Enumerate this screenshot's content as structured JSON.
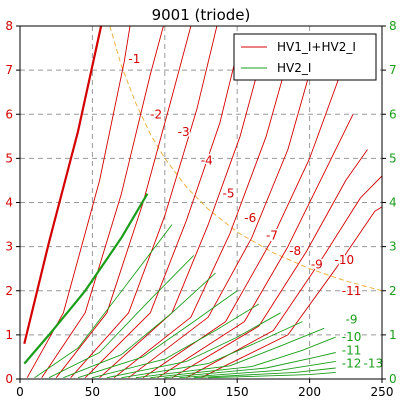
{
  "chart_data": {
    "type": "line",
    "title": "9001 (triode)",
    "xlim": [
      0,
      250
    ],
    "ylim": [
      0,
      8
    ],
    "x_ticks": [
      "0",
      "50",
      "100",
      "150",
      "200",
      "250"
    ],
    "y_ticks": [
      "0",
      "1",
      "2",
      "3",
      "4",
      "5",
      "6",
      "7",
      "8"
    ],
    "grid": true,
    "legend_position": "top-right",
    "colors": {
      "total": "#d40000",
      "hv2": "#1a9e1a",
      "dissipation": "#f0b040",
      "axis_left": "#d40000",
      "axis_right": "#1a9e1a"
    },
    "legend": [
      {
        "label": "HV1_I+HV2_I",
        "color": "#d40000"
      },
      {
        "label": "HV2_I",
        "color": "#1a9e1a"
      }
    ],
    "series": [
      {
        "name": "HV1_I+HV2_I",
        "grid_voltage": "0",
        "x": [
          3,
          20,
          40,
          56
        ],
        "y": [
          0.8,
          3.1,
          5.6,
          8.0
        ]
      },
      {
        "name": "HV1_I+HV2_I",
        "grid_voltage": "-1",
        "x": [
          5,
          30,
          55,
          72,
          76
        ],
        "y": [
          0.03,
          1.5,
          4.5,
          7.2,
          8.0
        ]
      },
      {
        "name": "HV1_I+HV2_I",
        "grid_voltage": "-2",
        "x": [
          15,
          45,
          70,
          90,
          99
        ],
        "y": [
          0.03,
          1.5,
          4.2,
          6.9,
          8.0
        ]
      },
      {
        "name": "HV1_I+HV2_I",
        "grid_voltage": "-3",
        "x": [
          25,
          60,
          85,
          105,
          118
        ],
        "y": [
          0.03,
          1.5,
          4.0,
          6.4,
          8.0
        ]
      },
      {
        "name": "HV1_I+HV2_I",
        "grid_voltage": "-4",
        "x": [
          35,
          75,
          100,
          122,
          136
        ],
        "y": [
          0.03,
          1.5,
          3.7,
          6.1,
          8.0
        ]
      },
      {
        "name": "HV1_I+HV2_I",
        "grid_voltage": "-5",
        "x": [
          45,
          90,
          115,
          138,
          153
        ],
        "y": [
          0.03,
          1.5,
          3.6,
          5.8,
          7.8
        ]
      },
      {
        "name": "HV1_I+HV2_I",
        "grid_voltage": "-6",
        "x": [
          55,
          105,
          130,
          152,
          171
        ],
        "y": [
          0.03,
          1.5,
          3.5,
          5.5,
          7.8
        ]
      },
      {
        "name": "HV1_I+HV2_I",
        "grid_voltage": "-7",
        "x": [
          65,
          118,
          145,
          170,
          188
        ],
        "y": [
          0.03,
          1.4,
          3.3,
          5.5,
          7.6
        ]
      },
      {
        "name": "HV1_I+HV2_I",
        "grid_voltage": "-8",
        "x": [
          75,
          130,
          160,
          185,
          204
        ],
        "y": [
          0.03,
          1.4,
          3.2,
          5.2,
          7.4
        ]
      },
      {
        "name": "HV1_I+HV2_I",
        "grid_voltage": "-9",
        "x": [
          85,
          142,
          173,
          200,
          220
        ],
        "y": [
          0.03,
          1.3,
          3.1,
          5.0,
          6.8
        ]
      },
      {
        "name": "HV1_I+HV2_I",
        "grid_voltage": "-10",
        "x": [
          95,
          155,
          185,
          212,
          230
        ],
        "y": [
          0.03,
          1.3,
          3.0,
          4.8,
          6.0
        ]
      },
      {
        "name": "HV1_I+HV2_I",
        "grid_voltage": "-11",
        "x": [
          105,
          165,
          198,
          225,
          240
        ],
        "y": [
          0.03,
          1.2,
          2.9,
          4.5,
          5.2
        ]
      },
      {
        "name": "HV1_I+HV2_I",
        "grid_voltage": "-12",
        "x": [
          115,
          175,
          208,
          235,
          250
        ],
        "y": [
          0.03,
          1.1,
          2.7,
          4.1,
          4.6
        ]
      },
      {
        "name": "HV1_I+HV2_I",
        "grid_voltage": "-13",
        "x": [
          125,
          185,
          218,
          245,
          250
        ],
        "y": [
          0.03,
          1.0,
          2.5,
          3.8,
          3.9
        ]
      },
      {
        "name": "HV2_I",
        "grid_voltage": "0",
        "x": [
          3,
          20,
          45,
          70,
          88
        ],
        "y": [
          0.35,
          1.0,
          2.0,
          3.2,
          4.2
        ]
      },
      {
        "name": "HV2_I",
        "grid_voltage": "-1",
        "x": [
          10,
          40,
          75,
          105
        ],
        "y": [
          0.03,
          0.7,
          2.2,
          3.5
        ]
      },
      {
        "name": "HV2_I",
        "grid_voltage": "-2",
        "x": [
          20,
          55,
          90,
          120
        ],
        "y": [
          0.03,
          0.6,
          1.8,
          2.8
        ]
      },
      {
        "name": "HV2_I",
        "grid_voltage": "-3",
        "x": [
          30,
          70,
          105,
          135
        ],
        "y": [
          0.03,
          0.55,
          1.5,
          2.4
        ]
      },
      {
        "name": "HV2_I",
        "grid_voltage": "-4",
        "x": [
          40,
          85,
          120,
          150
        ],
        "y": [
          0.03,
          0.5,
          1.3,
          2.0
        ]
      },
      {
        "name": "HV2_I",
        "grid_voltage": "-5",
        "x": [
          50,
          100,
          135,
          165
        ],
        "y": [
          0.03,
          0.45,
          1.1,
          1.7
        ]
      },
      {
        "name": "HV2_I",
        "grid_voltage": "-6",
        "x": [
          60,
          115,
          150,
          180
        ],
        "y": [
          0.03,
          0.4,
          0.95,
          1.5
        ]
      },
      {
        "name": "HV2_I",
        "grid_voltage": "-7",
        "x": [
          70,
          130,
          165,
          195
        ],
        "y": [
          0.03,
          0.35,
          0.85,
          1.3
        ]
      },
      {
        "name": "HV2_I",
        "grid_voltage": "-8",
        "x": [
          80,
          145,
          180,
          210
        ],
        "y": [
          0.03,
          0.3,
          0.75,
          1.15
        ]
      },
      {
        "name": "HV2_I",
        "grid_voltage": "-9",
        "x": [
          90,
          160,
          195,
          218
        ],
        "y": [
          0.03,
          0.28,
          0.65,
          0.95
        ]
      },
      {
        "name": "HV2_I",
        "grid_voltage": "-10",
        "x": [
          100,
          170,
          205,
          218
        ],
        "y": [
          0.03,
          0.25,
          0.5,
          0.6
        ]
      },
      {
        "name": "HV2_I",
        "grid_voltage": "-11",
        "x": [
          110,
          180,
          218
        ],
        "y": [
          0.03,
          0.2,
          0.4
        ]
      },
      {
        "name": "HV2_I",
        "grid_voltage": "-12",
        "x": [
          120,
          190,
          218
        ],
        "y": [
          0.03,
          0.15,
          0.25
        ]
      },
      {
        "name": "HV2_I",
        "grid_voltage": "-13",
        "x": [
          130,
          200,
          218
        ],
        "y": [
          0.03,
          0.1,
          0.15
        ]
      }
    ],
    "dissipation_curve": {
      "x": [
        62,
        70,
        80,
        90,
        100,
        115,
        130,
        150,
        175,
        200,
        225,
        250
      ],
      "y": [
        8.0,
        7.1,
        6.25,
        5.55,
        5.0,
        4.35,
        3.85,
        3.33,
        2.86,
        2.5,
        2.22,
        2.0
      ]
    },
    "curve_labels": [
      {
        "text": "-1",
        "x": 79,
        "y": 7.25,
        "color": "#d40000"
      },
      {
        "text": "-2",
        "x": 94,
        "y": 6.0,
        "color": "#d40000"
      },
      {
        "text": "-3",
        "x": 113,
        "y": 5.6,
        "color": "#d40000"
      },
      {
        "text": "-4",
        "x": 129,
        "y": 4.95,
        "color": "#d40000"
      },
      {
        "text": "-5",
        "x": 144,
        "y": 4.2,
        "color": "#d40000"
      },
      {
        "text": "-6",
        "x": 159,
        "y": 3.65,
        "color": "#d40000"
      },
      {
        "text": "-7",
        "x": 174,
        "y": 3.25,
        "color": "#d40000"
      },
      {
        "text": "-8",
        "x": 190,
        "y": 2.9,
        "color": "#d40000"
      },
      {
        "text": "-9",
        "x": 205,
        "y": 2.6,
        "color": "#d40000"
      },
      {
        "text": "-10",
        "x": 224,
        "y": 2.7,
        "color": "#d40000"
      },
      {
        "text": "-11",
        "x": 229,
        "y": 2.0,
        "color": "#d40000"
      },
      {
        "text": "-9",
        "x": 229,
        "y": 1.35,
        "color": "#1a9e1a"
      },
      {
        "text": "-10",
        "x": 229,
        "y": 0.95,
        "color": "#1a9e1a"
      },
      {
        "text": "-11",
        "x": 229,
        "y": 0.65,
        "color": "#1a9e1a"
      },
      {
        "text": "-12",
        "x": 229,
        "y": 0.35,
        "color": "#1a9e1a"
      },
      {
        "text": "-13",
        "x": 244,
        "y": 0.35,
        "color": "#1a9e1a"
      }
    ]
  }
}
